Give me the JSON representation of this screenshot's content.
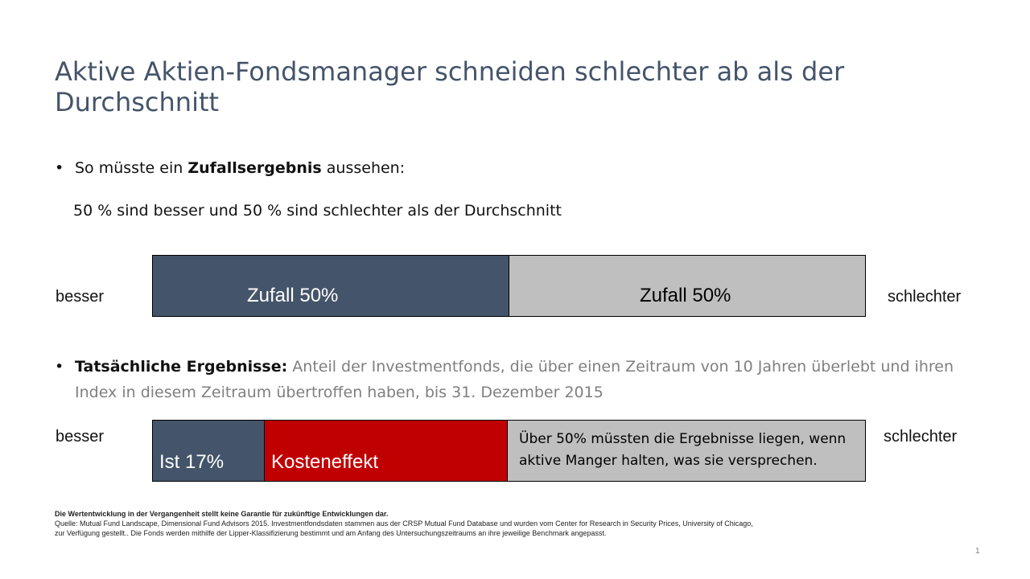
{
  "slide": {
    "title": "Aktive Aktien-Fondsmanager schneiden schlechter ab als der Durchschnitt",
    "page_number": "1"
  },
  "bullet1": {
    "prefix": "So müsste ein ",
    "bold": "Zufallsergebnis",
    "suffix": " aussehen:",
    "subline": "50 % sind besser und 50 % sind schlechter als der Durchschnitt"
  },
  "bar1": {
    "left_label": "besser",
    "right_label": "schlechter",
    "segments": [
      {
        "label": "Zufall 50%",
        "color": "#44546a"
      },
      {
        "label": "Zufall 50%",
        "color": "#bfbfbf"
      }
    ]
  },
  "bullet2": {
    "bold": "Tatsächliche Ergebnisse:",
    "text": " Anteil der Investmentfonds, die über einen Zeitraum von 10 Jahren überlebt und ihren Index in diesem Zeitraum übertroffen haben, bis 31. Dezember 2015"
  },
  "bar2": {
    "left_label": "besser",
    "right_label": "schlechter",
    "segments": [
      {
        "label": "Ist 17%",
        "color": "#44546a"
      },
      {
        "label": "Kosteneffekt",
        "color": "#c00000"
      },
      {
        "label": "Über 50% müssten die Ergebnisse liegen, wenn aktive Manger halten, was sie versprechen.",
        "color": "#bfbfbf"
      }
    ]
  },
  "footnote": {
    "disclaimer": "Die Wertentwicklung in der Vergangenheit stellt keine Garantie für zukünftige Entwicklungen dar.",
    "source": "Quelle: Mutual Fund Landscape, Dimensional Fund Advisors 2015. Investmentfondsdaten stammen aus der CRSP Mutual Fund Database und wurden vom Center for Research in Security Prices, University of Chicago, zur Verfügung gestellt.. Die Fonds werden mithilfe der Lipper-Klassifizierung bestimmt und am Anfang des Untersuchungszeitraums an ihre jeweilige Benchmark angepasst."
  }
}
